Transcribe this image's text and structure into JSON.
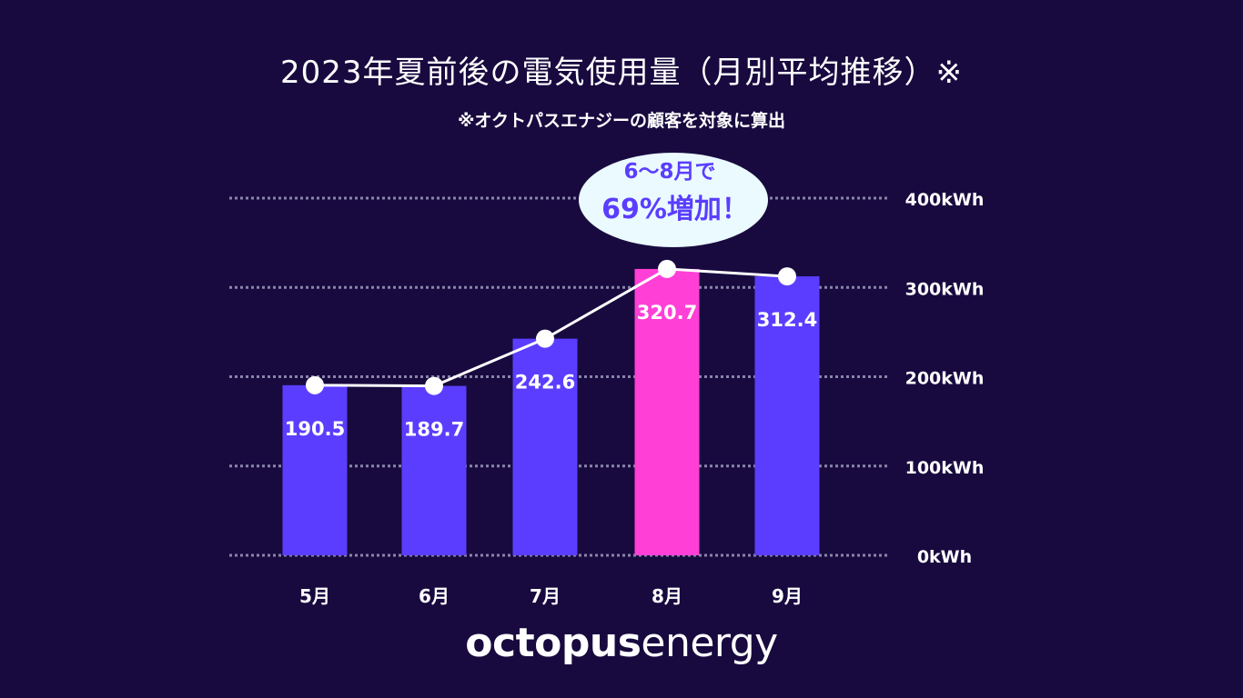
{
  "header": {
    "title": "2023年夏前後の電気使用量（月別平均推移）※",
    "subtitle": "※オクトパスエナジーの顧客を対象に算出"
  },
  "callout": {
    "line1": "6〜8月で",
    "line2": "69%増加！"
  },
  "logo": {
    "bold": "octopus",
    "light": "energy"
  },
  "colors": {
    "background": "#180a3f",
    "bar": "#5b3dff",
    "highlight_bar": "#ff3fd6",
    "grid": "#8a85a8",
    "line": "#ffffff",
    "callout_bg": "#eafaff",
    "callout_text": "#5b3dff"
  },
  "chart_data": {
    "type": "bar",
    "title": "2023年夏前後の電気使用量（月別平均推移）※",
    "categories": [
      "5月",
      "6月",
      "7月",
      "8月",
      "9月"
    ],
    "values": [
      190.5,
      189.7,
      242.6,
      320.7,
      312.4
    ],
    "value_labels": [
      "190.5",
      "189.7",
      "242.6",
      "320.7",
      "312.4"
    ],
    "highlight_index": 3,
    "overlay_line": true,
    "ylim": [
      0,
      400
    ],
    "y_ticks": [
      0,
      100,
      200,
      300,
      400
    ],
    "y_tick_labels": [
      "0kWh",
      "100kWh",
      "200kWh",
      "300kWh",
      "400kWh"
    ],
    "y_axis_side": "right",
    "grid": true
  }
}
